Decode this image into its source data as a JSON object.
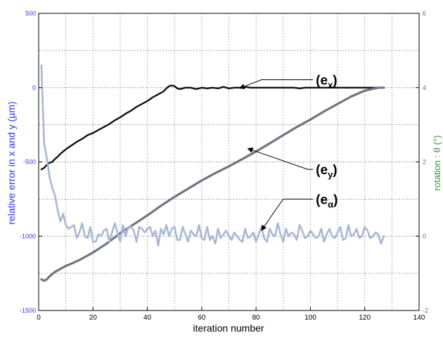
{
  "chart_data": {
    "type": "line",
    "xlabel": "iteration number",
    "ylabel_left": "relative error in x and y  (µm)",
    "ylabel_right": "rotation : θ (°)",
    "xlim": [
      0,
      140
    ],
    "ylim_left": [
      -1500,
      500
    ],
    "ylim_right": [
      -2,
      6
    ],
    "x_ticks": [
      0,
      20,
      40,
      60,
      80,
      100,
      120,
      140
    ],
    "y_left_ticks": [
      500,
      0,
      -500,
      -1000,
      -1500
    ],
    "y_right_ticks": [
      6,
      4,
      2,
      0,
      -2
    ],
    "grid": true,
    "colors": {
      "left_axis": "#3333ff",
      "right_axis": "#339933",
      "ex": "#111111",
      "ey": "#6e7680",
      "ealpha": "#a8b8d4"
    },
    "annotations": [
      {
        "label": "(e",
        "sub": "x",
        "series": "ex",
        "text_at": [
          102,
          53
        ],
        "arrow_from": [
          82,
          53
        ],
        "arrow_to": [
          74,
          -4
        ]
      },
      {
        "label": "(e",
        "sub": "y",
        "series": "ey",
        "text_at": [
          102,
          -550
        ],
        "arrow_from": [
          99,
          -550
        ],
        "arrow_to": [
          77,
          -410
        ]
      },
      {
        "label": "(e",
        "sub": "α",
        "series": "ealpha",
        "text_at": [
          102,
          -750
        ],
        "arrow_from": [
          90,
          -750
        ],
        "arrow_to": [
          82,
          -960
        ]
      }
    ],
    "series": [
      {
        "id": "ex",
        "axis": "left",
        "x": [
          1,
          2,
          3,
          4,
          5,
          6,
          7,
          8,
          10,
          12,
          14,
          16,
          18,
          20,
          22,
          24,
          26,
          28,
          30,
          32,
          34,
          36,
          38,
          40,
          42,
          44,
          46,
          47,
          48,
          49,
          50,
          51,
          52,
          53,
          54,
          56,
          58,
          60,
          62,
          64,
          66,
          68,
          70,
          72,
          74,
          76,
          78,
          80,
          82,
          84,
          86,
          88,
          90,
          92,
          94,
          96,
          98,
          100,
          102,
          104,
          106,
          108,
          110,
          112,
          114,
          116,
          118,
          120,
          122,
          124,
          126,
          127
        ],
        "y": [
          -550,
          -540,
          -520,
          -505,
          -500,
          -480,
          -465,
          -445,
          -415,
          -390,
          -365,
          -345,
          -320,
          -305,
          -285,
          -265,
          -245,
          -220,
          -200,
          -175,
          -155,
          -130,
          -110,
          -90,
          -65,
          -45,
          -25,
          -5,
          10,
          15,
          10,
          -5,
          -10,
          -5,
          0,
          0,
          -10,
          0,
          -5,
          0,
          -5,
          5,
          -5,
          0,
          0,
          5,
          0,
          0,
          0,
          0,
          0,
          0,
          0,
          0,
          0,
          -5,
          0,
          0,
          0,
          0,
          0,
          0,
          0,
          0,
          0,
          0,
          0,
          0,
          0,
          0,
          0,
          0
        ]
      },
      {
        "id": "ey",
        "axis": "left",
        "x": [
          1,
          2,
          3,
          4,
          6,
          8,
          10,
          12,
          15,
          20,
          25,
          30,
          35,
          40,
          45,
          50,
          55,
          60,
          65,
          70,
          75,
          80,
          85,
          90,
          95,
          100,
          105,
          110,
          115,
          120,
          125,
          127
        ],
        "y": [
          -1290,
          -1300,
          -1290,
          -1270,
          -1240,
          -1220,
          -1200,
          -1185,
          -1160,
          -1110,
          -1050,
          -980,
          -920,
          -860,
          -795,
          -735,
          -680,
          -625,
          -575,
          -530,
          -480,
          -430,
          -375,
          -320,
          -265,
          -215,
          -160,
          -110,
          -60,
          -20,
          0,
          0
        ]
      },
      {
        "id": "ealpha",
        "axis": "right",
        "x": [
          1,
          2,
          3,
          4,
          5,
          6,
          7,
          8,
          9,
          10,
          11,
          12,
          13,
          14,
          15,
          16,
          17,
          18,
          19,
          20,
          21,
          22,
          23,
          24,
          25,
          26,
          27,
          28,
          29,
          30,
          31,
          32,
          33,
          34,
          35,
          36,
          37,
          38,
          39,
          40,
          41,
          42,
          43,
          44,
          45,
          46,
          47,
          48,
          49,
          50,
          51,
          52,
          53,
          54,
          55,
          56,
          57,
          58,
          59,
          60,
          61,
          62,
          63,
          64,
          65,
          66,
          67,
          68,
          69,
          70,
          71,
          72,
          73,
          74,
          75,
          76,
          77,
          78,
          79,
          80,
          81,
          82,
          83,
          84,
          85,
          86,
          87,
          88,
          89,
          90,
          91,
          92,
          93,
          94,
          95,
          96,
          97,
          98,
          99,
          100,
          101,
          102,
          103,
          104,
          105,
          106,
          107,
          108,
          109,
          110,
          111,
          112,
          113,
          114,
          115,
          116,
          117,
          118,
          119,
          120,
          121,
          122,
          123,
          124,
          125,
          126,
          127
        ],
        "y": [
          4.6,
          2.5,
          2.1,
          1.6,
          1.3,
          1.1,
          0.7,
          0.4,
          0.6,
          0.3,
          0.2,
          0.25,
          0.3,
          -0.05,
          0.1,
          0.35,
          0.0,
          -0.05,
          0.25,
          -0.15,
          -0.15,
          0.05,
          0.0,
          0.15,
          0.2,
          -0.15,
          0.1,
          0.35,
          0.1,
          -0.15,
          0.3,
          0.0,
          0.25,
          0.25,
          0.15,
          -0.15,
          0.25,
          0.2,
          0.1,
          0.2,
          0.25,
          0.0,
          0.15,
          -0.25,
          0.2,
          0.05,
          0.3,
          0.0,
          0.2,
          0.25,
          -0.1,
          -0.1,
          0.25,
          0.05,
          -0.15,
          0.15,
          0.05,
          0.0,
          0.3,
          -0.05,
          -0.1,
          0.25,
          -0.1,
          0.0,
          -0.2,
          0.2,
          -0.05,
          0.05,
          0.15,
          0.0,
          -0.1,
          0.1,
          0.0,
          -0.1,
          -0.15,
          0.2,
          -0.05,
          0.0,
          0.1,
          -0.15,
          0.05,
          0.25,
          -0.05,
          -0.15,
          0.2,
          0.05,
          0.0,
          0.35,
          0.05,
          -0.15,
          0.2,
          0.0,
          0.1,
          0.05,
          -0.1,
          0.3,
          0.15,
          -0.05,
          0.0,
          0.15,
          0.05,
          -0.05,
          0.0,
          0.2,
          -0.15,
          0.05,
          0.2,
          0.0,
          -0.05,
          0.1,
          0.25,
          -0.1,
          -0.05,
          0.3,
          0.0,
          0.05,
          0.2,
          -0.05,
          0.0,
          0.25,
          0.15,
          -0.05,
          0.0,
          0.1,
          0.05,
          -0.2,
          0.0
        ]
      }
    ]
  }
}
